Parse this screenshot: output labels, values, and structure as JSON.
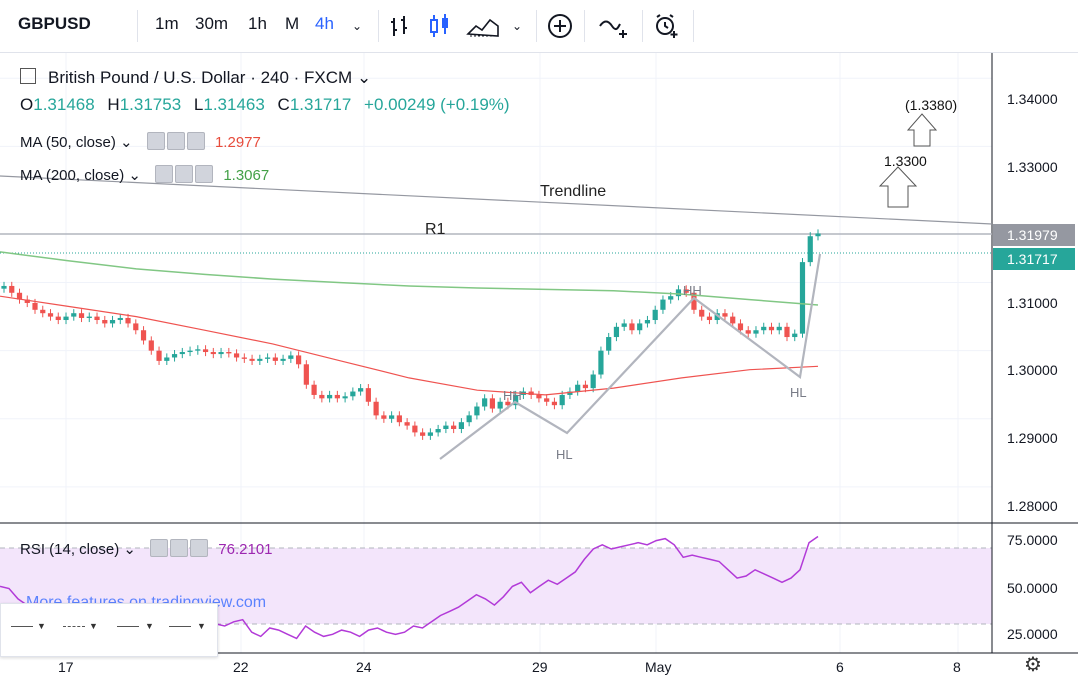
{
  "toolbar": {
    "symbol": "GBPUSD",
    "intervals": [
      "1m",
      "30m",
      "1h",
      "M",
      "4h"
    ],
    "active_interval": "4h"
  },
  "legend": {
    "title": "British Pound / U.S. Dollar · 240 · FXCM",
    "ohlc": {
      "o_label": "O",
      "o": "1.31468",
      "h_label": "H",
      "h": "1.31753",
      "l_label": "L",
      "l": "1.31463",
      "c_label": "C",
      "c": "1.31717",
      "chg": "+0.00249 (+0.19%)"
    },
    "ma50": {
      "label": "MA (50, close)",
      "value": "1.2977",
      "color": "#e74c3c"
    },
    "ma200": {
      "label": "MA (200, close)",
      "value": "1.3067",
      "color": "#43a047"
    },
    "rsi": {
      "label": "RSI (14, close)",
      "value": "76.2101",
      "color": "#9c27b0"
    }
  },
  "watermark": "More features on tradingview.com",
  "annotations": {
    "trendline": "Trendline",
    "r1": "R1",
    "hh1": "HH",
    "hl1": "HL",
    "hh2": "HH",
    "hl2": "HL",
    "target1": "1.3300",
    "target2": "(1.3380)"
  },
  "price_axis": {
    "ticks": [
      "1.34000",
      "1.33000",
      "1.31000",
      "1.30000",
      "1.29000",
      "1.28000"
    ],
    "r1_badge": "1.31979",
    "last_badge": "1.31717"
  },
  "rsi_axis": {
    "ticks": [
      "75.0000",
      "50.0000",
      "25.0000"
    ]
  },
  "time_axis": {
    "ticks": [
      "17",
      "22",
      "24",
      "29",
      "May",
      "6",
      "8"
    ]
  },
  "colors": {
    "up": "#26a69a",
    "down": "#ef5350",
    "ma50": "#ef5350",
    "ma200": "#81c784",
    "rsi": "#b23ad8",
    "rsi_band": "#f3e5fb",
    "accent": "#2962ff"
  },
  "chart_data": {
    "type": "candlestick",
    "title": "British Pound / U.S. Dollar · 240 · FXCM",
    "xlabel": "",
    "ylabel": "",
    "ylim": [
      1.275,
      1.345
    ],
    "price_levels": {
      "r1": 1.31979,
      "last": 1.31717,
      "target1": 1.33,
      "target2": 1.338
    },
    "closes_approx": [
      1.3095,
      1.3085,
      1.3075,
      1.307,
      1.306,
      1.3055,
      1.305,
      1.3045,
      1.305,
      1.3055,
      1.3048,
      1.305,
      1.3045,
      1.304,
      1.3045,
      1.3048,
      1.304,
      1.303,
      1.3015,
      1.3,
      1.2985,
      1.299,
      1.2995,
      1.2998,
      1.3,
      1.3002,
      1.2998,
      1.2995,
      1.2998,
      1.2996,
      1.299,
      1.2988,
      1.2985,
      1.2988,
      1.299,
      1.2985,
      1.2988,
      1.2993,
      1.298,
      1.295,
      1.2935,
      1.293,
      1.2935,
      1.293,
      1.2933,
      1.294,
      1.2945,
      1.2925,
      1.2905,
      1.29,
      1.2905,
      1.2895,
      1.289,
      1.288,
      1.2875,
      1.288,
      1.2885,
      1.289,
      1.2885,
      1.2895,
      1.2905,
      1.2918,
      1.293,
      1.2915,
      1.2925,
      1.292,
      1.2935,
      1.294,
      1.2935,
      1.293,
      1.2925,
      1.292,
      1.2935,
      1.294,
      1.295,
      1.2945,
      1.2965,
      1.3,
      1.302,
      1.3035,
      1.304,
      1.303,
      1.304,
      1.3045,
      1.306,
      1.3075,
      1.308,
      1.309,
      1.3085,
      1.306,
      1.305,
      1.3045,
      1.3055,
      1.305,
      1.304,
      1.303,
      1.3025,
      1.303,
      1.3035,
      1.303,
      1.3035,
      1.302,
      1.3025,
      1.313,
      1.3168,
      1.3172
    ],
    "ma50": [
      1.308,
      1.3065,
      1.305,
      1.303,
      1.301,
      1.2985,
      1.296,
      1.2942,
      1.2935,
      1.2945,
      1.296,
      1.2972,
      1.2977
    ],
    "ma200": [
      1.3145,
      1.3132,
      1.312,
      1.3112,
      1.3105,
      1.31,
      1.3095,
      1.3092,
      1.309,
      1.3088,
      1.3083,
      1.3075,
      1.3067
    ],
    "rsi": {
      "ylim": [
        20,
        80
      ],
      "overbought": 70,
      "oversold": 30,
      "values": [
        52,
        51,
        46,
        43,
        44,
        42,
        40,
        38,
        41,
        39,
        37,
        35,
        33,
        34,
        36,
        35,
        33,
        34,
        33,
        32,
        30,
        34,
        35,
        36,
        34,
        33,
        35,
        36,
        30,
        28,
        32,
        31,
        29,
        27,
        33,
        30,
        28,
        29,
        31,
        30,
        28,
        31,
        32,
        30,
        29,
        30,
        33,
        32,
        35,
        38,
        40,
        42,
        45,
        48,
        46,
        43,
        47,
        52,
        54,
        49,
        52,
        55,
        53,
        56,
        59,
        65,
        70,
        72,
        70,
        71,
        72,
        73,
        72,
        74,
        75,
        72,
        66,
        67,
        66,
        65,
        64,
        60,
        56,
        57,
        60,
        58,
        56,
        54,
        56,
        60,
        73,
        76
      ]
    }
  }
}
